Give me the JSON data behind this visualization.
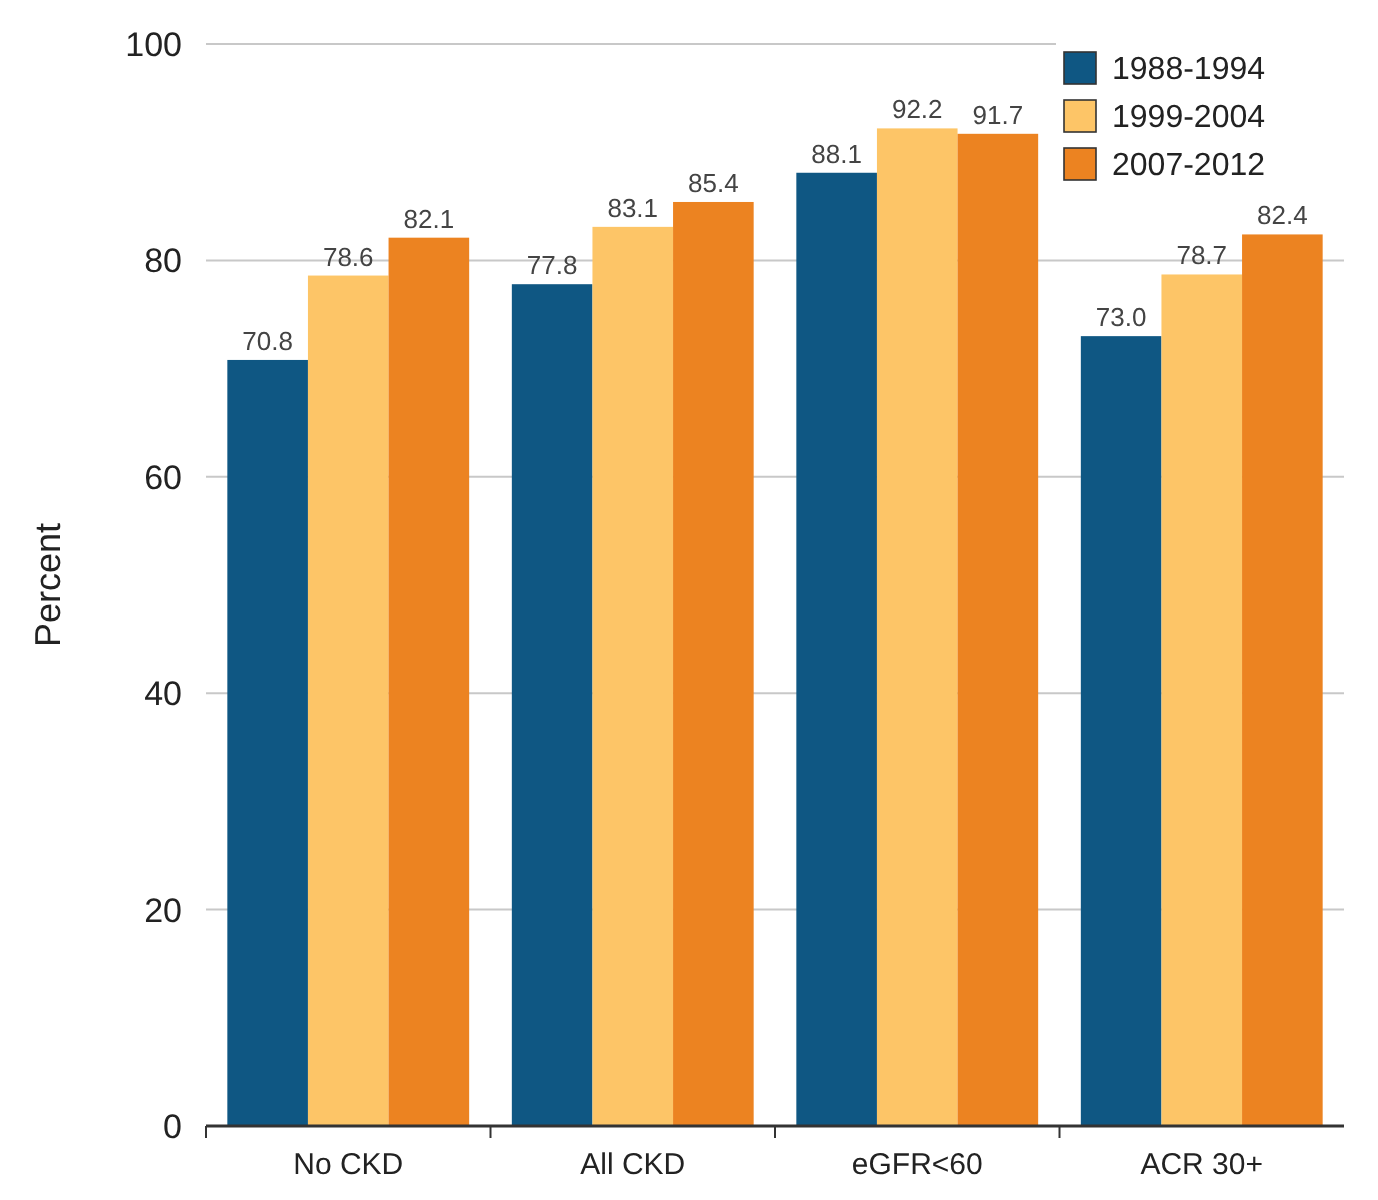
{
  "chart_data": {
    "type": "bar",
    "ylabel": "Percent",
    "categories": [
      "No CKD",
      "All CKD",
      "eGFR<60",
      "ACR 30+"
    ],
    "series": [
      {
        "name": "1988-1994",
        "color": "#0f5783",
        "values": [
          70.8,
          77.8,
          88.1,
          73.0
        ],
        "value_labels": [
          "70.8",
          "77.8",
          "88.1",
          "73.0"
        ]
      },
      {
        "name": "1999-2004",
        "color": "#fdc567",
        "values": [
          78.6,
          83.1,
          92.2,
          78.7
        ],
        "value_labels": [
          "78.6",
          "83.1",
          "92.2",
          "78.7"
        ]
      },
      {
        "name": "2007-2012",
        "color": "#ec8321",
        "values": [
          82.1,
          85.4,
          91.7,
          82.4
        ],
        "value_labels": [
          "82.1",
          "85.4",
          "91.7",
          "82.4"
        ]
      }
    ],
    "ylim": [
      0,
      100
    ],
    "yticks": [
      0,
      20,
      40,
      60,
      80,
      100
    ],
    "grid": "y",
    "legend": "top right"
  }
}
